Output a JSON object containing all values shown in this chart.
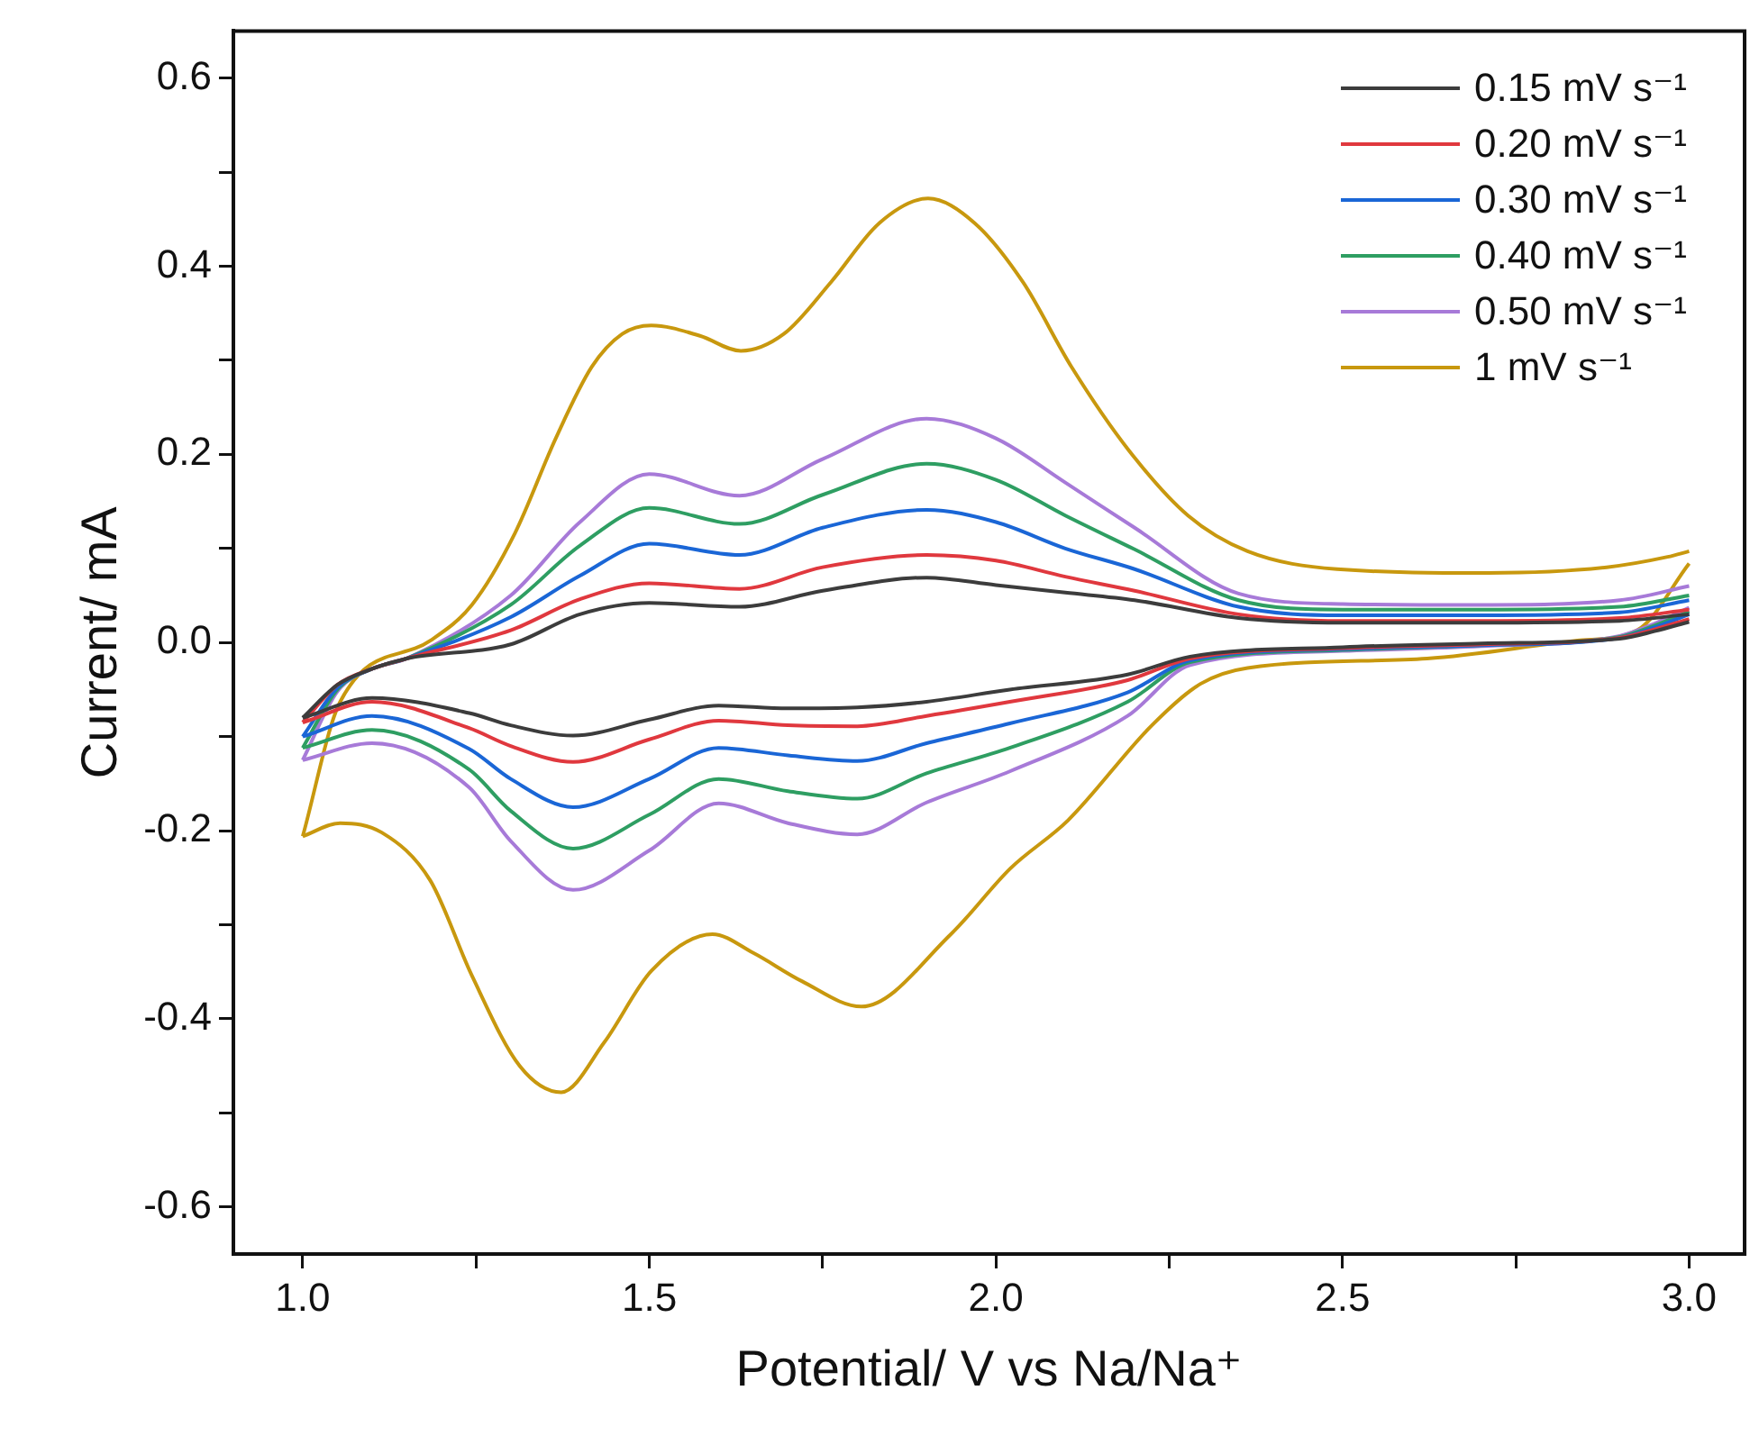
{
  "chart_data": {
    "type": "line",
    "xlabel": "Potential/ V vs Na/Na⁺",
    "ylabel": "Current/ mA",
    "xlim": [
      0.9,
      3.08
    ],
    "ylim": [
      -0.65,
      0.65
    ],
    "xticks": [
      {
        "value": 1,
        "label": "1.0"
      },
      {
        "value": 1.25,
        "label": null
      },
      {
        "value": 1.5,
        "label": "1.5"
      },
      {
        "value": 1.75,
        "label": null
      },
      {
        "value": 2,
        "label": "2.0"
      },
      {
        "value": 2.25,
        "label": null
      },
      {
        "value": 2.5,
        "label": "2.5"
      },
      {
        "value": 2.75,
        "label": null
      },
      {
        "value": 3,
        "label": "3.0"
      }
    ],
    "yticks": [
      {
        "value": -0.6,
        "label": "-0.6"
      },
      {
        "value": -0.5,
        "label": null
      },
      {
        "value": -0.4,
        "label": "-0.4"
      },
      {
        "value": -0.3,
        "label": null
      },
      {
        "value": -0.2,
        "label": "-0.2"
      },
      {
        "value": -0.1,
        "label": null
      },
      {
        "value": 0,
        "label": "0.0"
      },
      {
        "value": 0.1,
        "label": null
      },
      {
        "value": 0.2,
        "label": "0.2"
      },
      {
        "value": 0.3,
        "label": null
      },
      {
        "value": 0.4,
        "label": "0.4"
      },
      {
        "value": 0.5,
        "label": null
      },
      {
        "value": 0.6,
        "label": "0.6"
      }
    ],
    "grid": false,
    "legend": "top right",
    "marker": "none",
    "line_style": "solid",
    "series": [
      {
        "name": "0.15 mV s⁻¹",
        "color": "#3c3c3c",
        "x": [
          1.0,
          1.05,
          1.1,
          1.15,
          1.3,
          1.4,
          1.5,
          1.63,
          1.75,
          1.9,
          2.0,
          2.1,
          2.2,
          2.35,
          2.5,
          2.7,
          2.9,
          3.0
        ],
        "values": [
          -0.08,
          -0.045,
          -0.028,
          -0.017,
          -0.002,
          0.03,
          0.042,
          0.038,
          0.055,
          0.069,
          0.061,
          0.053,
          0.045,
          0.026,
          0.021,
          0.021,
          0.023,
          0.03
        ]
      },
      {
        "color": "#3c3c3c",
        "x": [
          1.0,
          1.1,
          1.24,
          1.3,
          1.39,
          1.5,
          1.6,
          1.7,
          1.8,
          1.9,
          2.02,
          2.19,
          2.28,
          2.5,
          2.7,
          2.9,
          2.95,
          3.0
        ],
        "values": [
          -0.08,
          -0.059,
          -0.075,
          -0.088,
          -0.099,
          -0.082,
          -0.067,
          -0.07,
          -0.069,
          -0.063,
          -0.05,
          -0.034,
          -0.015,
          -0.005,
          -0.001,
          0.004,
          0.012,
          0.022
        ]
      },
      {
        "name": "0.20 mV s⁻¹",
        "color": "#e0383e",
        "x": [
          1.0,
          1.05,
          1.1,
          1.15,
          1.3,
          1.4,
          1.5,
          1.63,
          1.75,
          1.9,
          2.0,
          2.1,
          2.2,
          2.35,
          2.5,
          2.7,
          2.9,
          3.0
        ],
        "values": [
          -0.085,
          -0.045,
          -0.028,
          -0.017,
          0.013,
          0.046,
          0.063,
          0.057,
          0.08,
          0.093,
          0.087,
          0.07,
          0.055,
          0.03,
          0.023,
          0.023,
          0.026,
          0.035
        ]
      },
      {
        "color": "#e0383e",
        "x": [
          1.0,
          1.1,
          1.24,
          1.3,
          1.39,
          1.5,
          1.6,
          1.7,
          1.8,
          1.9,
          2.02,
          2.19,
          2.28,
          2.5,
          2.7,
          2.9,
          2.95,
          3.0
        ],
        "values": [
          -0.085,
          -0.063,
          -0.091,
          -0.11,
          -0.127,
          -0.103,
          -0.083,
          -0.088,
          -0.089,
          -0.078,
          -0.063,
          -0.04,
          -0.017,
          -0.006,
          -0.002,
          0.005,
          0.014,
          0.025
        ]
      },
      {
        "name": "0.30 mV s⁻¹",
        "color": "#1a66d6",
        "x": [
          1.0,
          1.05,
          1.1,
          1.15,
          1.3,
          1.4,
          1.5,
          1.63,
          1.75,
          1.9,
          2.0,
          2.1,
          2.2,
          2.35,
          2.5,
          2.7,
          2.9,
          3.0
        ],
        "values": [
          -0.1,
          -0.048,
          -0.028,
          -0.017,
          0.027,
          0.071,
          0.105,
          0.093,
          0.122,
          0.141,
          0.128,
          0.1,
          0.078,
          0.038,
          0.029,
          0.029,
          0.032,
          0.045
        ]
      },
      {
        "color": "#1a66d6",
        "x": [
          1.0,
          1.1,
          1.24,
          1.3,
          1.39,
          1.5,
          1.6,
          1.7,
          1.8,
          1.9,
          2.02,
          2.19,
          2.28,
          2.5,
          2.7,
          2.9,
          2.95,
          3.0
        ],
        "values": [
          -0.1,
          -0.078,
          -0.113,
          -0.145,
          -0.175,
          -0.145,
          -0.112,
          -0.12,
          -0.126,
          -0.107,
          -0.086,
          -0.053,
          -0.019,
          -0.007,
          -0.003,
          0.005,
          0.016,
          0.03
        ]
      },
      {
        "name": "0.40 mV s⁻¹",
        "color": "#2e9e62",
        "x": [
          1.0,
          1.05,
          1.1,
          1.15,
          1.3,
          1.4,
          1.5,
          1.63,
          1.75,
          1.9,
          2.0,
          2.1,
          2.2,
          2.35,
          2.5,
          2.7,
          2.9,
          3.0
        ],
        "values": [
          -0.112,
          -0.05,
          -0.028,
          -0.017,
          0.04,
          0.103,
          0.143,
          0.126,
          0.157,
          0.19,
          0.173,
          0.135,
          0.099,
          0.045,
          0.035,
          0.035,
          0.038,
          0.05
        ]
      },
      {
        "color": "#2e9e62",
        "x": [
          1.0,
          1.1,
          1.24,
          1.3,
          1.39,
          1.5,
          1.6,
          1.7,
          1.8,
          1.9,
          2.02,
          2.19,
          2.28,
          2.5,
          2.7,
          2.9,
          2.95,
          3.0
        ],
        "values": [
          -0.112,
          -0.093,
          -0.135,
          -0.179,
          -0.219,
          -0.183,
          -0.145,
          -0.158,
          -0.166,
          -0.139,
          -0.112,
          -0.063,
          -0.021,
          -0.008,
          -0.003,
          0.006,
          0.018,
          0.033
        ]
      },
      {
        "name": "0.50 mV s⁻¹",
        "color": "#a77ad8",
        "x": [
          1.0,
          1.05,
          1.1,
          1.15,
          1.3,
          1.4,
          1.5,
          1.63,
          1.75,
          1.9,
          2.0,
          2.1,
          2.2,
          2.35,
          2.5,
          2.7,
          2.9,
          3.0
        ],
        "values": [
          -0.125,
          -0.052,
          -0.028,
          -0.017,
          0.05,
          0.128,
          0.179,
          0.156,
          0.195,
          0.238,
          0.217,
          0.17,
          0.122,
          0.052,
          0.041,
          0.04,
          0.045,
          0.06
        ]
      },
      {
        "color": "#a77ad8",
        "x": [
          1.0,
          1.1,
          1.24,
          1.3,
          1.39,
          1.5,
          1.6,
          1.7,
          1.8,
          1.9,
          2.02,
          2.19,
          2.28,
          2.5,
          2.7,
          2.9,
          2.95,
          3.0
        ],
        "values": [
          -0.125,
          -0.107,
          -0.154,
          -0.211,
          -0.263,
          -0.221,
          -0.171,
          -0.192,
          -0.204,
          -0.17,
          -0.137,
          -0.078,
          -0.024,
          -0.009,
          -0.004,
          0.007,
          0.02,
          0.037
        ]
      },
      {
        "name": "1 mV s⁻¹",
        "color": "#c8980e",
        "x": [
          1.0,
          1.054,
          1.184,
          1.244,
          1.306,
          1.365,
          1.417,
          1.461,
          1.503,
          1.573,
          1.632,
          1.694,
          1.762,
          1.832,
          1.902,
          1.969,
          2.039,
          2.109,
          2.192,
          2.277,
          2.363,
          2.492,
          2.71,
          2.881,
          2.969,
          3.0
        ],
        "values": [
          -0.206,
          -0.063,
          0.002,
          0.04,
          0.116,
          0.217,
          0.293,
          0.328,
          0.337,
          0.326,
          0.31,
          0.328,
          0.383,
          0.446,
          0.472,
          0.446,
          0.383,
          0.293,
          0.204,
          0.135,
          0.097,
          0.078,
          0.074,
          0.08,
          0.091,
          0.097
        ]
      },
      {
        "color": "#c8980e",
        "x": [
          1.0,
          1.054,
          1.114,
          1.184,
          1.244,
          1.313,
          1.373,
          1.435,
          1.503,
          1.591,
          1.65,
          1.72,
          1.806,
          1.935,
          2.021,
          2.104,
          2.225,
          2.295,
          2.363,
          2.622,
          2.839,
          2.925,
          3.0
        ],
        "values": [
          -0.206,
          -0.192,
          -0.202,
          -0.253,
          -0.354,
          -0.45,
          -0.478,
          -0.425,
          -0.349,
          -0.31,
          -0.33,
          -0.36,
          -0.387,
          -0.31,
          -0.24,
          -0.189,
          -0.088,
          -0.044,
          -0.027,
          -0.017,
          0.002,
          0.013,
          0.084
        ]
      }
    ]
  }
}
